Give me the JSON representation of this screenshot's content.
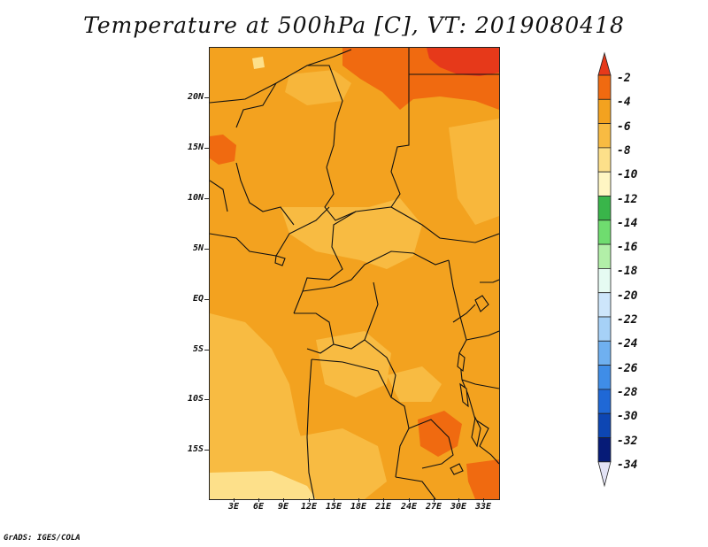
{
  "title": "Temperature at 500hPa [C], VT: 2019080418",
  "credit": "GrADS: IGES/COLA",
  "lat_labels": [
    "20N",
    "15N",
    "10N",
    "5N",
    "EQ",
    "5S",
    "10S",
    "15S"
  ],
  "lon_labels": [
    "3E",
    "6E",
    "9E",
    "12E",
    "15E",
    "18E",
    "21E",
    "24E",
    "27E",
    "30E",
    "33E"
  ],
  "colorbar": {
    "labels": [
      "-2",
      "-4",
      "-6",
      "-8",
      "-10",
      "-12",
      "-14",
      "-16",
      "-18",
      "-20",
      "-22",
      "-24",
      "-26",
      "-28",
      "-30",
      "-32",
      "-34"
    ],
    "colors": [
      "#e6391a",
      "#f06a10",
      "#f3a21f",
      "#f8bb42",
      "#fde08a",
      "#fff6c3",
      "#39b54a",
      "#6fdc6f",
      "#b2efa8",
      "#e6fbf2",
      "#cde6fb",
      "#a6d1f7",
      "#6fb0f0",
      "#3f8de7",
      "#1f68d6",
      "#0d46b3",
      "#061b77",
      "#e3e3f5"
    ]
  }
}
